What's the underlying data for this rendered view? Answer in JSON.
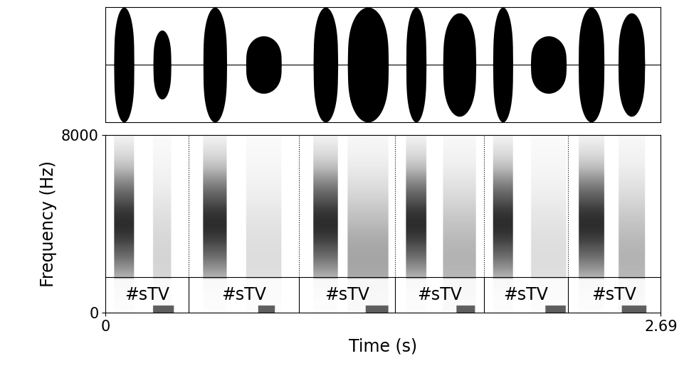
{
  "chart_data": {
    "type": "spectrogram",
    "x_label": "Time (s)",
    "y_label": "Frequency (Hz)",
    "xlim": [
      0,
      2.69
    ],
    "xticks": [
      0,
      2.69
    ],
    "ylim": [
      0,
      8000
    ],
    "yticks": [
      0,
      8000
    ],
    "waveform_ylim": [
      -1,
      1
    ],
    "tier_top": 1600,
    "boundaries": [
      0,
      0.404,
      0.938,
      1.404,
      1.835,
      2.239,
      2.69
    ],
    "segment_labels": [
      "#sTV",
      "#sTV",
      "#sTV",
      "#sTV",
      "#sTV",
      "#sTV"
    ],
    "noise_intervals": [
      [
        0.041,
        0.138
      ],
      [
        0.231,
        0.317
      ],
      [
        0.473,
        0.587
      ],
      [
        0.68,
        0.852
      ],
      [
        1.007,
        1.125
      ],
      [
        1.173,
        1.37
      ],
      [
        1.456,
        1.553
      ],
      [
        1.635,
        1.794
      ],
      [
        1.877,
        1.973
      ],
      [
        2.06,
        2.232
      ],
      [
        2.291,
        2.415
      ],
      [
        2.484,
        2.612
      ]
    ],
    "amplitudes": [
      1.0,
      0.6,
      1.0,
      0.5,
      1.0,
      1.0,
      1.0,
      0.9,
      1.0,
      0.5,
      1.0,
      0.9
    ],
    "voicing_intervals": [
      [
        0.23,
        0.33
      ],
      [
        0.74,
        0.82
      ],
      [
        1.26,
        1.37
      ],
      [
        1.7,
        1.79
      ],
      [
        2.13,
        2.23
      ],
      [
        2.5,
        2.62
      ]
    ]
  }
}
